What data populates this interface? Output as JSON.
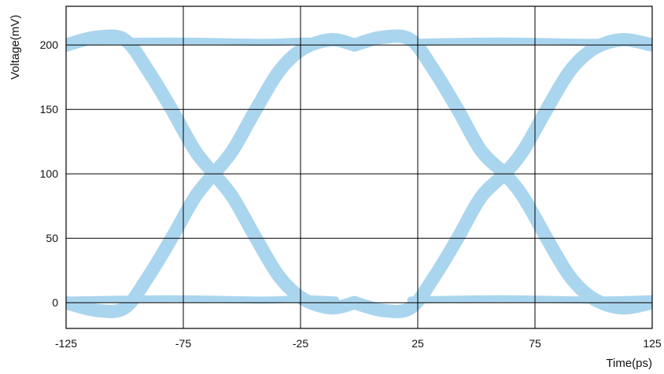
{
  "chart_data": {
    "type": "line",
    "title": "",
    "xlabel": "Time(ps)",
    "ylabel": "Voltage(mV)",
    "xlim": [
      -125,
      125
    ],
    "ylim": [
      -20,
      230
    ],
    "x_ticks": [
      -125,
      -75,
      -25,
      25,
      75,
      125
    ],
    "y_ticks": [
      0,
      50,
      100,
      150,
      200
    ],
    "x_tick_labels": [
      "-125",
      "-75",
      "-25",
      "25",
      "75",
      "125"
    ],
    "y_tick_labels": [
      "0",
      "50",
      "100",
      "150",
      "200"
    ],
    "grid": true,
    "legend": "none",
    "color": "#aad5ee",
    "series": [
      {
        "points": [
          [
            -125,
            200
          ],
          [
            -112,
            206
          ],
          [
            -100,
            204
          ],
          [
            -90,
            180
          ],
          [
            -80,
            150
          ],
          [
            -70,
            118
          ],
          [
            -62,
            100
          ],
          [
            -54,
            82
          ],
          [
            -44,
            50
          ],
          [
            -34,
            20
          ],
          [
            -24,
            3
          ],
          [
            -12,
            -4
          ],
          [
            -2,
            0
          ]
        ]
      },
      {
        "points": [
          [
            -125,
            0
          ],
          [
            -112,
            -6
          ],
          [
            -100,
            -4
          ],
          [
            -90,
            20
          ],
          [
            -80,
            50
          ],
          [
            -70,
            82
          ],
          [
            -62,
            100
          ],
          [
            -54,
            118
          ],
          [
            -44,
            150
          ],
          [
            -34,
            180
          ],
          [
            -24,
            197
          ],
          [
            -12,
            204
          ],
          [
            -2,
            200
          ]
        ]
      },
      {
        "points": [
          [
            -2,
            200
          ],
          [
            10,
            206
          ],
          [
            22,
            204
          ],
          [
            32,
            180
          ],
          [
            42,
            150
          ],
          [
            52,
            118
          ],
          [
            62,
            100
          ],
          [
            70,
            82
          ],
          [
            80,
            50
          ],
          [
            90,
            20
          ],
          [
            100,
            3
          ],
          [
            112,
            -4
          ],
          [
            125,
            0
          ]
        ]
      },
      {
        "points": [
          [
            -2,
            0
          ],
          [
            10,
            -6
          ],
          [
            22,
            -4
          ],
          [
            32,
            20
          ],
          [
            42,
            50
          ],
          [
            52,
            82
          ],
          [
            62,
            100
          ],
          [
            70,
            118
          ],
          [
            80,
            150
          ],
          [
            90,
            180
          ],
          [
            100,
            197
          ],
          [
            112,
            204
          ],
          [
            125,
            200
          ]
        ]
      },
      {
        "points": [
          [
            -125,
            202
          ],
          [
            -80,
            203
          ],
          [
            -40,
            202
          ],
          [
            -24,
            203
          ],
          [
            -10,
            202
          ]
        ]
      },
      {
        "points": [
          [
            -125,
            2
          ],
          [
            -80,
            3
          ],
          [
            -40,
            2
          ],
          [
            -24,
            3
          ],
          [
            -10,
            2
          ]
        ]
      },
      {
        "points": [
          [
            22,
            202
          ],
          [
            60,
            203
          ],
          [
            100,
            202
          ],
          [
            125,
            203
          ]
        ]
      },
      {
        "points": [
          [
            22,
            2
          ],
          [
            60,
            3
          ],
          [
            100,
            2
          ],
          [
            125,
            3
          ]
        ]
      }
    ]
  }
}
